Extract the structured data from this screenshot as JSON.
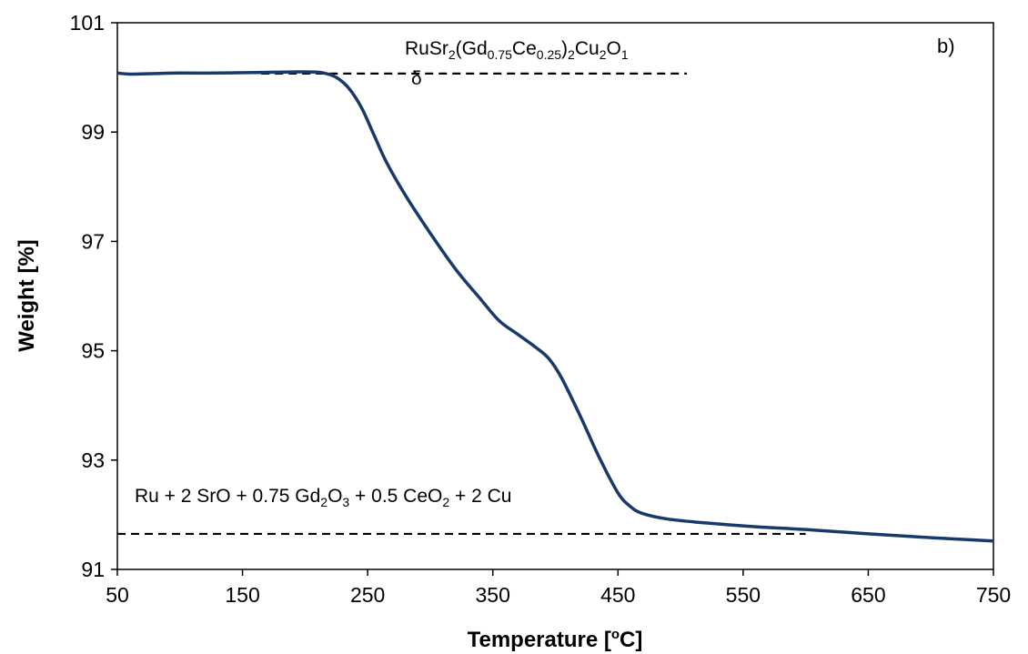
{
  "chart_data": {
    "type": "line",
    "panel_label": "b)",
    "xlabel": {
      "main": "Temperature [",
      "sup": "o",
      "tail": "C]"
    },
    "ylabel": "Weight [%]",
    "xlim": [
      50,
      750
    ],
    "ylim": [
      91,
      101
    ],
    "x_ticks": [
      50,
      150,
      250,
      350,
      450,
      550,
      650,
      750
    ],
    "y_ticks": [
      91,
      93,
      95,
      97,
      99,
      101
    ],
    "grid": false,
    "series": [
      {
        "color": "#173a6b",
        "points": [
          [
            50,
            100.08
          ],
          [
            60,
            100.06
          ],
          [
            80,
            100.07
          ],
          [
            100,
            100.08
          ],
          [
            130,
            100.08
          ],
          [
            160,
            100.09
          ],
          [
            190,
            100.1
          ],
          [
            205,
            100.1
          ],
          [
            215,
            100.08
          ],
          [
            225,
            100.0
          ],
          [
            235,
            99.8
          ],
          [
            245,
            99.45
          ],
          [
            255,
            98.95
          ],
          [
            265,
            98.45
          ],
          [
            280,
            97.85
          ],
          [
            300,
            97.15
          ],
          [
            320,
            96.5
          ],
          [
            340,
            95.95
          ],
          [
            355,
            95.55
          ],
          [
            370,
            95.3
          ],
          [
            385,
            95.05
          ],
          [
            395,
            94.85
          ],
          [
            405,
            94.5
          ],
          [
            420,
            93.8
          ],
          [
            435,
            93.05
          ],
          [
            450,
            92.4
          ],
          [
            460,
            92.15
          ],
          [
            470,
            92.02
          ],
          [
            490,
            91.92
          ],
          [
            520,
            91.85
          ],
          [
            560,
            91.78
          ],
          [
            600,
            91.73
          ],
          [
            650,
            91.65
          ],
          [
            700,
            91.58
          ],
          [
            750,
            91.52
          ]
        ]
      }
    ],
    "reference_lines": [
      {
        "y": 100.07,
        "x_start": 165,
        "x_end": 505,
        "style": "dashed"
      },
      {
        "y": 91.65,
        "x_start": 50,
        "x_end": 600,
        "style": "dashed"
      }
    ],
    "annotations": {
      "top": {
        "parts": [
          {
            "t": "RuSr"
          },
          {
            "t": "2",
            "sub": true
          },
          {
            "t": "(Gd"
          },
          {
            "t": "0.75",
            "sub": true
          },
          {
            "t": "Ce"
          },
          {
            "t": "0.25",
            "sub": true
          },
          {
            "t": ")"
          },
          {
            "t": "2",
            "sub": true
          },
          {
            "t": "Cu"
          },
          {
            "t": "2",
            "sub": true
          },
          {
            "t": "O"
          },
          {
            "t": "1",
            "sub": true
          }
        ],
        "overflow_fragment": "δ"
      },
      "bottom": {
        "parts": [
          {
            "t": "Ru + 2 SrO + 0.75 Gd"
          },
          {
            "t": "2",
            "sub": true
          },
          {
            "t": "O"
          },
          {
            "t": "3",
            "sub": true
          },
          {
            "t": " + 0.5 CeO"
          },
          {
            "t": "2",
            "sub": true
          },
          {
            "t": " + 2 Cu"
          }
        ]
      }
    }
  }
}
